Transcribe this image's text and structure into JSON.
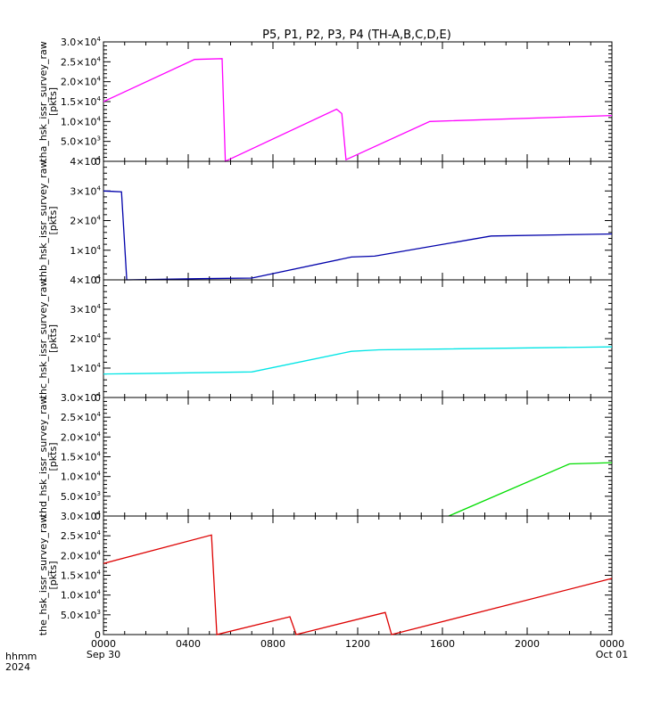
{
  "title": "P5, P1, P2, P3, P4 (TH-A,B,C,D,E)",
  "x_axis": {
    "ticks": [
      {
        "t": 0,
        "label": "0000"
      },
      {
        "t": 4,
        "label": "0400"
      },
      {
        "t": 8,
        "label": "0800"
      },
      {
        "t": 12,
        "label": "1200"
      },
      {
        "t": 16,
        "label": "1600"
      },
      {
        "t": 20,
        "label": "2000"
      },
      {
        "t": 24,
        "label": "0000"
      }
    ],
    "start_date_label": "Sep 30",
    "end_date_label": "Oct 01",
    "unit_label": "hhmm",
    "year_label": "2024"
  },
  "chart_data": [
    {
      "type": "line",
      "ylabel": "tha_hsk_issr_survey_raw",
      "yunit": "[pkts]",
      "ylim": [
        0,
        30000
      ],
      "color": "#ff00ff",
      "y_ticks": [
        {
          "v": 0,
          "mant": "0",
          "exp": ""
        },
        {
          "v": 5000,
          "mant": "5.0×10",
          "exp": "3"
        },
        {
          "v": 10000,
          "mant": "1.0×10",
          "exp": "4"
        },
        {
          "v": 15000,
          "mant": "1.5×10",
          "exp": "4"
        },
        {
          "v": 20000,
          "mant": "2.0×10",
          "exp": "4"
        },
        {
          "v": 25000,
          "mant": "2.5×10",
          "exp": "4"
        },
        {
          "v": 30000,
          "mant": "3.0×10",
          "exp": "4"
        }
      ],
      "x": [
        0,
        4.3,
        5.6,
        5.75,
        11.0,
        11.25,
        11.45,
        15.4,
        24
      ],
      "y": [
        15000,
        25600,
        25800,
        0,
        13100,
        12000,
        400,
        10000,
        11500
      ]
    },
    {
      "type": "line",
      "ylabel": "thb_hsk_issr_survey_raw",
      "yunit": "[pkts]",
      "ylim": [
        0,
        40000
      ],
      "color": "#0000aa",
      "y_ticks": [
        {
          "v": 0,
          "mant": "0",
          "exp": ""
        },
        {
          "v": 10000,
          "mant": "1×10",
          "exp": "4"
        },
        {
          "v": 20000,
          "mant": "2×10",
          "exp": "4"
        },
        {
          "v": 30000,
          "mant": "3×10",
          "exp": "4"
        },
        {
          "v": 40000,
          "mant": "4×10",
          "exp": "4"
        }
      ],
      "x": [
        0,
        0.85,
        1.1,
        4.5,
        7.0,
        11.7,
        12.8,
        18.3,
        24
      ],
      "y": [
        30000,
        29700,
        0,
        400,
        600,
        7700,
        8000,
        14800,
        15500
      ]
    },
    {
      "type": "line",
      "ylabel": "thc_hsk_issr_survey_raw",
      "yunit": "[pkts]",
      "ylim": [
        0,
        40000
      ],
      "color": "#00e5e5",
      "y_ticks": [
        {
          "v": 0,
          "mant": "0",
          "exp": ""
        },
        {
          "v": 10000,
          "mant": "1×10",
          "exp": "4"
        },
        {
          "v": 20000,
          "mant": "2×10",
          "exp": "4"
        },
        {
          "v": 30000,
          "mant": "3×10",
          "exp": "4"
        },
        {
          "v": 40000,
          "mant": "4×10",
          "exp": "4"
        }
      ],
      "x": [
        0,
        1.2,
        7.0,
        11.7,
        13.0,
        24
      ],
      "y": [
        8000,
        8100,
        8700,
        15700,
        16200,
        17200
      ]
    },
    {
      "type": "line",
      "ylabel": "thd_hsk_issr_survey_raw",
      "yunit": "[pkts]",
      "ylim": [
        0,
        30000
      ],
      "color": "#00dd00",
      "y_ticks": [
        {
          "v": 0,
          "mant": "0",
          "exp": ""
        },
        {
          "v": 5000,
          "mant": "5.0×10",
          "exp": "3"
        },
        {
          "v": 10000,
          "mant": "1.0×10",
          "exp": "4"
        },
        {
          "v": 15000,
          "mant": "1.5×10",
          "exp": "4"
        },
        {
          "v": 20000,
          "mant": "2.0×10",
          "exp": "4"
        },
        {
          "v": 25000,
          "mant": "2.5×10",
          "exp": "4"
        },
        {
          "v": 30000,
          "mant": "3.0×10",
          "exp": "4"
        }
      ],
      "x": [
        16.3,
        22.0,
        24
      ],
      "y": [
        0,
        13200,
        13500
      ]
    },
    {
      "type": "line",
      "ylabel": "the_hsk_issr_survey_raw",
      "yunit": "[pkts]",
      "ylim": [
        0,
        30000
      ],
      "color": "#dd0000",
      "y_ticks": [
        {
          "v": 0,
          "mant": "0",
          "exp": ""
        },
        {
          "v": 5000,
          "mant": "5.0×10",
          "exp": "3"
        },
        {
          "v": 10000,
          "mant": "1.0×10",
          "exp": "4"
        },
        {
          "v": 15000,
          "mant": "1.5×10",
          "exp": "4"
        },
        {
          "v": 20000,
          "mant": "2.0×10",
          "exp": "4"
        },
        {
          "v": 25000,
          "mant": "2.5×10",
          "exp": "4"
        },
        {
          "v": 30000,
          "mant": "3.0×10",
          "exp": "4"
        }
      ],
      "x": [
        0,
        5.1,
        5.35,
        8.8,
        9.1,
        13.3,
        13.6,
        24
      ],
      "y": [
        18000,
        25200,
        0,
        4500,
        0,
        5600,
        0,
        14200
      ]
    }
  ]
}
